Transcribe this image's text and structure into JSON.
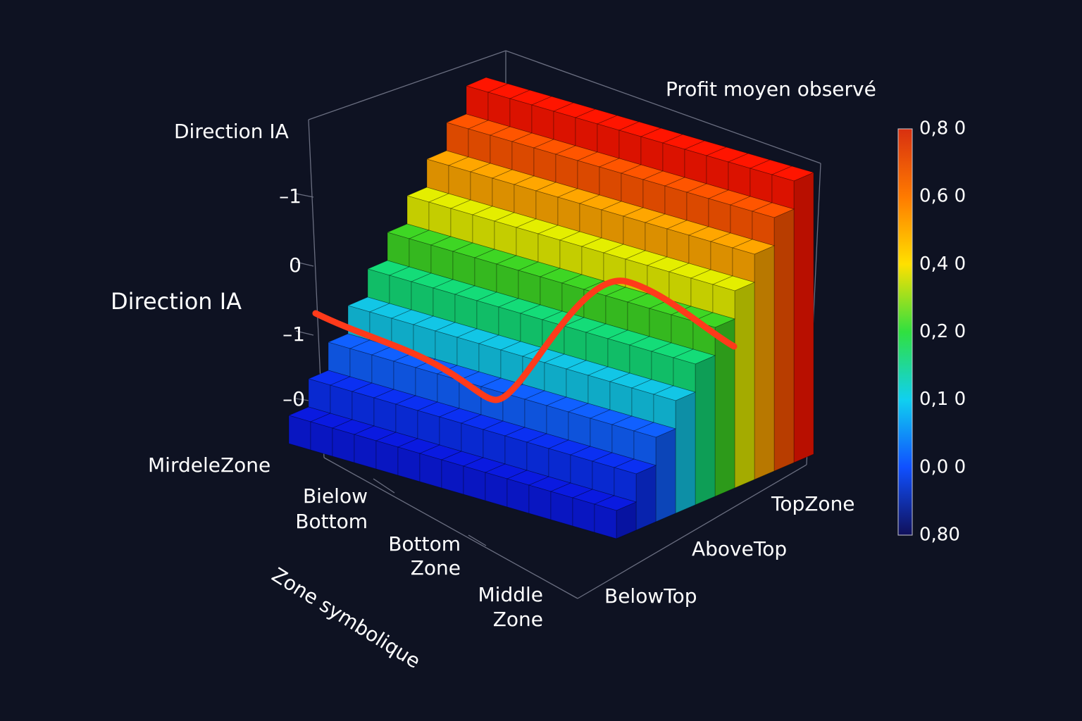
{
  "chart_data": {
    "type": "stair3d",
    "title": "Profit moyen observé",
    "z_title": "Direction IA",
    "z_label": "Direction IA",
    "z_categories": [
      "–1",
      "0",
      "–1",
      "–0"
    ],
    "x_label": "Zone symbolique",
    "x_categories": [
      [
        "MirdeleZone"
      ],
      [
        "Bielow",
        "Bottom"
      ],
      [
        "Bottom",
        "Zone"
      ],
      [
        "Middle",
        "Zone"
      ]
    ],
    "y_categories": [
      "TopZone",
      "AboveTop",
      "BelowTop"
    ],
    "step_colors": [
      "#ff1500",
      "#ff5500",
      "#ffa600",
      "#e4ee00",
      "#3ed624",
      "#14dc78",
      "#12c6e6",
      "#1060ff",
      "#0b30f2",
      "#0a1ae0"
    ],
    "line_color": "#ff3a1a",
    "colorbar": {
      "labels": [
        "0,8 0",
        "0,6 0",
        "0,4 0",
        "0,2 0",
        "0,1 0",
        "0,0 0",
        "0,80"
      ],
      "colors": [
        "#d83010",
        "#ff7a00",
        "#ffe000",
        "#30e040",
        "#10d0f0",
        "#1050ff",
        "#10105a"
      ]
    }
  }
}
